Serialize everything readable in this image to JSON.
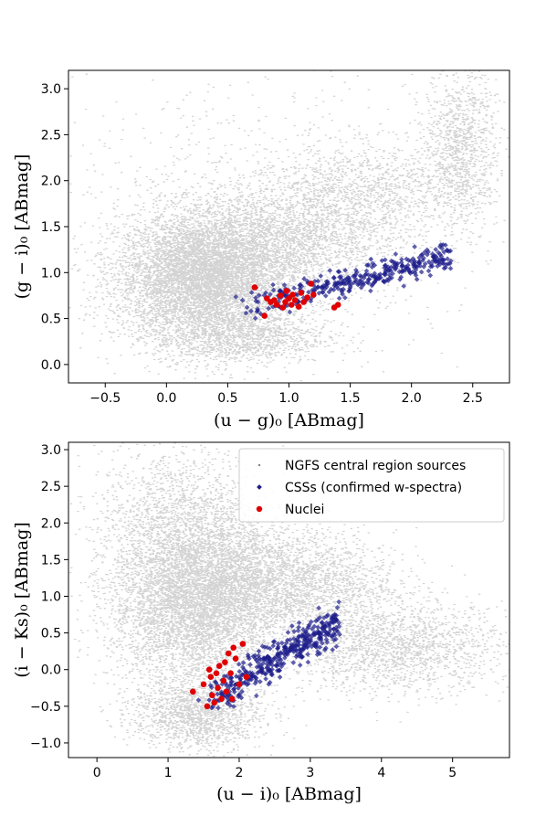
{
  "chart_data": [
    {
      "type": "scatter",
      "xlabel": "(u − g)₀ [ABmag]",
      "ylabel": "(g − i)₀ [ABmag]",
      "xlim": [
        -0.8,
        2.8
      ],
      "ylim": [
        -0.2,
        3.2
      ],
      "xticks": [
        "−0.5",
        "0.0",
        "0.5",
        "1.0",
        "1.5",
        "2.0",
        "2.5"
      ],
      "xtick_values": [
        -0.5,
        0.0,
        0.5,
        1.0,
        1.5,
        2.0,
        2.5
      ],
      "yticks": [
        "0.0",
        "0.5",
        "1.0",
        "1.5",
        "2.0",
        "2.5",
        "3.0"
      ],
      "ytick_values": [
        0.0,
        0.5,
        1.0,
        1.5,
        2.0,
        2.5,
        3.0
      ],
      "grid": false,
      "legend": null,
      "series": [
        {
          "color": "#808080",
          "marker": "dot",
          "clusters": [
            {
              "cx": 0.3,
              "cy": 0.95,
              "sx": 0.35,
              "sy": 0.35,
              "weight": 0.55
            },
            {
              "cx": 1.0,
              "cy": 1.35,
              "sx": 0.45,
              "sy": 0.3,
              "weight": 0.15
            },
            {
              "cx": 1.6,
              "cy": 1.9,
              "sx": 0.4,
              "sy": 0.25,
              "weight": 0.07
            },
            {
              "cx": 2.4,
              "cy": 2.35,
              "sx": 0.15,
              "sy": 0.45,
              "weight": 0.08
            },
            {
              "cx": 0.6,
              "cy": 0.3,
              "sx": 0.35,
              "sy": 0.15,
              "weight": 0.08
            },
            {
              "cx": 0.8,
              "cy": 1.6,
              "sx": 0.9,
              "sy": 0.8,
              "weight": 0.07
            }
          ]
        },
        {
          "color": "#1c1c8a",
          "marker": "diamond",
          "ridge": {
            "x_from": 0.6,
            "x_to": 2.3,
            "y_at_from": 0.62,
            "y_at_to": 1.18,
            "scatter": 0.07
          }
        },
        {
          "color": "#e00000",
          "marker": "circle",
          "points": [
            [
              0.72,
              0.84
            ],
            [
              0.8,
              0.53
            ],
            [
              0.82,
              0.72
            ],
            [
              0.85,
              0.68
            ],
            [
              0.88,
              0.7
            ],
            [
              0.9,
              0.65
            ],
            [
              0.93,
              0.75
            ],
            [
              0.95,
              0.62
            ],
            [
              0.97,
              0.68
            ],
            [
              1.0,
              0.72
            ],
            [
              1.02,
              0.65
            ],
            [
              1.05,
              0.7
            ],
            [
              1.08,
              0.63
            ],
            [
              1.1,
              0.78
            ],
            [
              1.12,
              0.68
            ],
            [
              1.15,
              0.73
            ],
            [
              1.18,
              0.88
            ],
            [
              1.2,
              0.76
            ],
            [
              0.98,
              0.8
            ],
            [
              1.03,
              0.76
            ],
            [
              1.37,
              0.62
            ],
            [
              1.4,
              0.65
            ]
          ]
        }
      ]
    },
    {
      "type": "scatter",
      "xlabel": "(u − i)₀ [ABmag]",
      "ylabel": "(i − Ks)₀ [ABmag]",
      "xlim": [
        -0.4,
        5.8
      ],
      "ylim": [
        -1.2,
        3.1
      ],
      "xticks": [
        "0",
        "1",
        "2",
        "3",
        "4",
        "5"
      ],
      "xtick_values": [
        0,
        1,
        2,
        3,
        4,
        5
      ],
      "yticks": [
        "−1.0",
        "−0.5",
        "0.0",
        "0.5",
        "1.0",
        "1.5",
        "2.0",
        "2.5",
        "3.0"
      ],
      "ytick_values": [
        -1.0,
        -0.5,
        0.0,
        0.5,
        1.0,
        1.5,
        2.0,
        2.5,
        3.0
      ],
      "grid": false,
      "legend": {
        "placement": "upper-right",
        "entries": [
          "NGFS central region sources",
          "CSSs (confirmed w-spectra)",
          "Nuclei"
        ]
      },
      "series": [
        {
          "name": "NGFS central region sources",
          "color": "#808080",
          "marker": "dot",
          "clusters": [
            {
              "cx": 1.4,
              "cy": 0.9,
              "sx": 0.6,
              "sy": 0.55,
              "weight": 0.5
            },
            {
              "cx": 2.6,
              "cy": 1.2,
              "sx": 0.8,
              "sy": 0.35,
              "weight": 0.17
            },
            {
              "cx": 4.2,
              "cy": 0.3,
              "sx": 0.8,
              "sy": 0.3,
              "weight": 0.12
            },
            {
              "cx": 1.4,
              "cy": -0.6,
              "sx": 0.45,
              "sy": 0.25,
              "weight": 0.1
            },
            {
              "cx": 1.2,
              "cy": 2.0,
              "sx": 0.6,
              "sy": 0.5,
              "weight": 0.11
            }
          ]
        },
        {
          "name": "CSSs (confirmed w-spectra)",
          "color": "#1c1c8a",
          "marker": "diamond",
          "ridge": {
            "x_from": 1.5,
            "x_to": 3.4,
            "y_at_from": -0.45,
            "y_at_to": 0.65,
            "scatter": 0.12
          }
        },
        {
          "name": "Nuclei",
          "color": "#e00000",
          "marker": "circle",
          "points": [
            [
              1.35,
              -0.3
            ],
            [
              1.5,
              -0.2
            ],
            [
              1.55,
              -0.5
            ],
            [
              1.6,
              -0.1
            ],
            [
              1.62,
              -0.35
            ],
            [
              1.65,
              -0.45
            ],
            [
              1.7,
              -0.25
            ],
            [
              1.72,
              0.05
            ],
            [
              1.75,
              -0.4
            ],
            [
              1.78,
              -0.15
            ],
            [
              1.8,
              0.1
            ],
            [
              1.82,
              -0.3
            ],
            [
              1.85,
              0.22
            ],
            [
              1.88,
              -0.05
            ],
            [
              1.9,
              -0.4
            ],
            [
              1.95,
              0.15
            ],
            [
              2.0,
              -0.2
            ],
            [
              2.05,
              0.35
            ],
            [
              1.68,
              -0.05
            ],
            [
              1.58,
              0.0
            ],
            [
              2.1,
              -0.1
            ],
            [
              1.92,
              0.3
            ]
          ]
        }
      ]
    }
  ]
}
